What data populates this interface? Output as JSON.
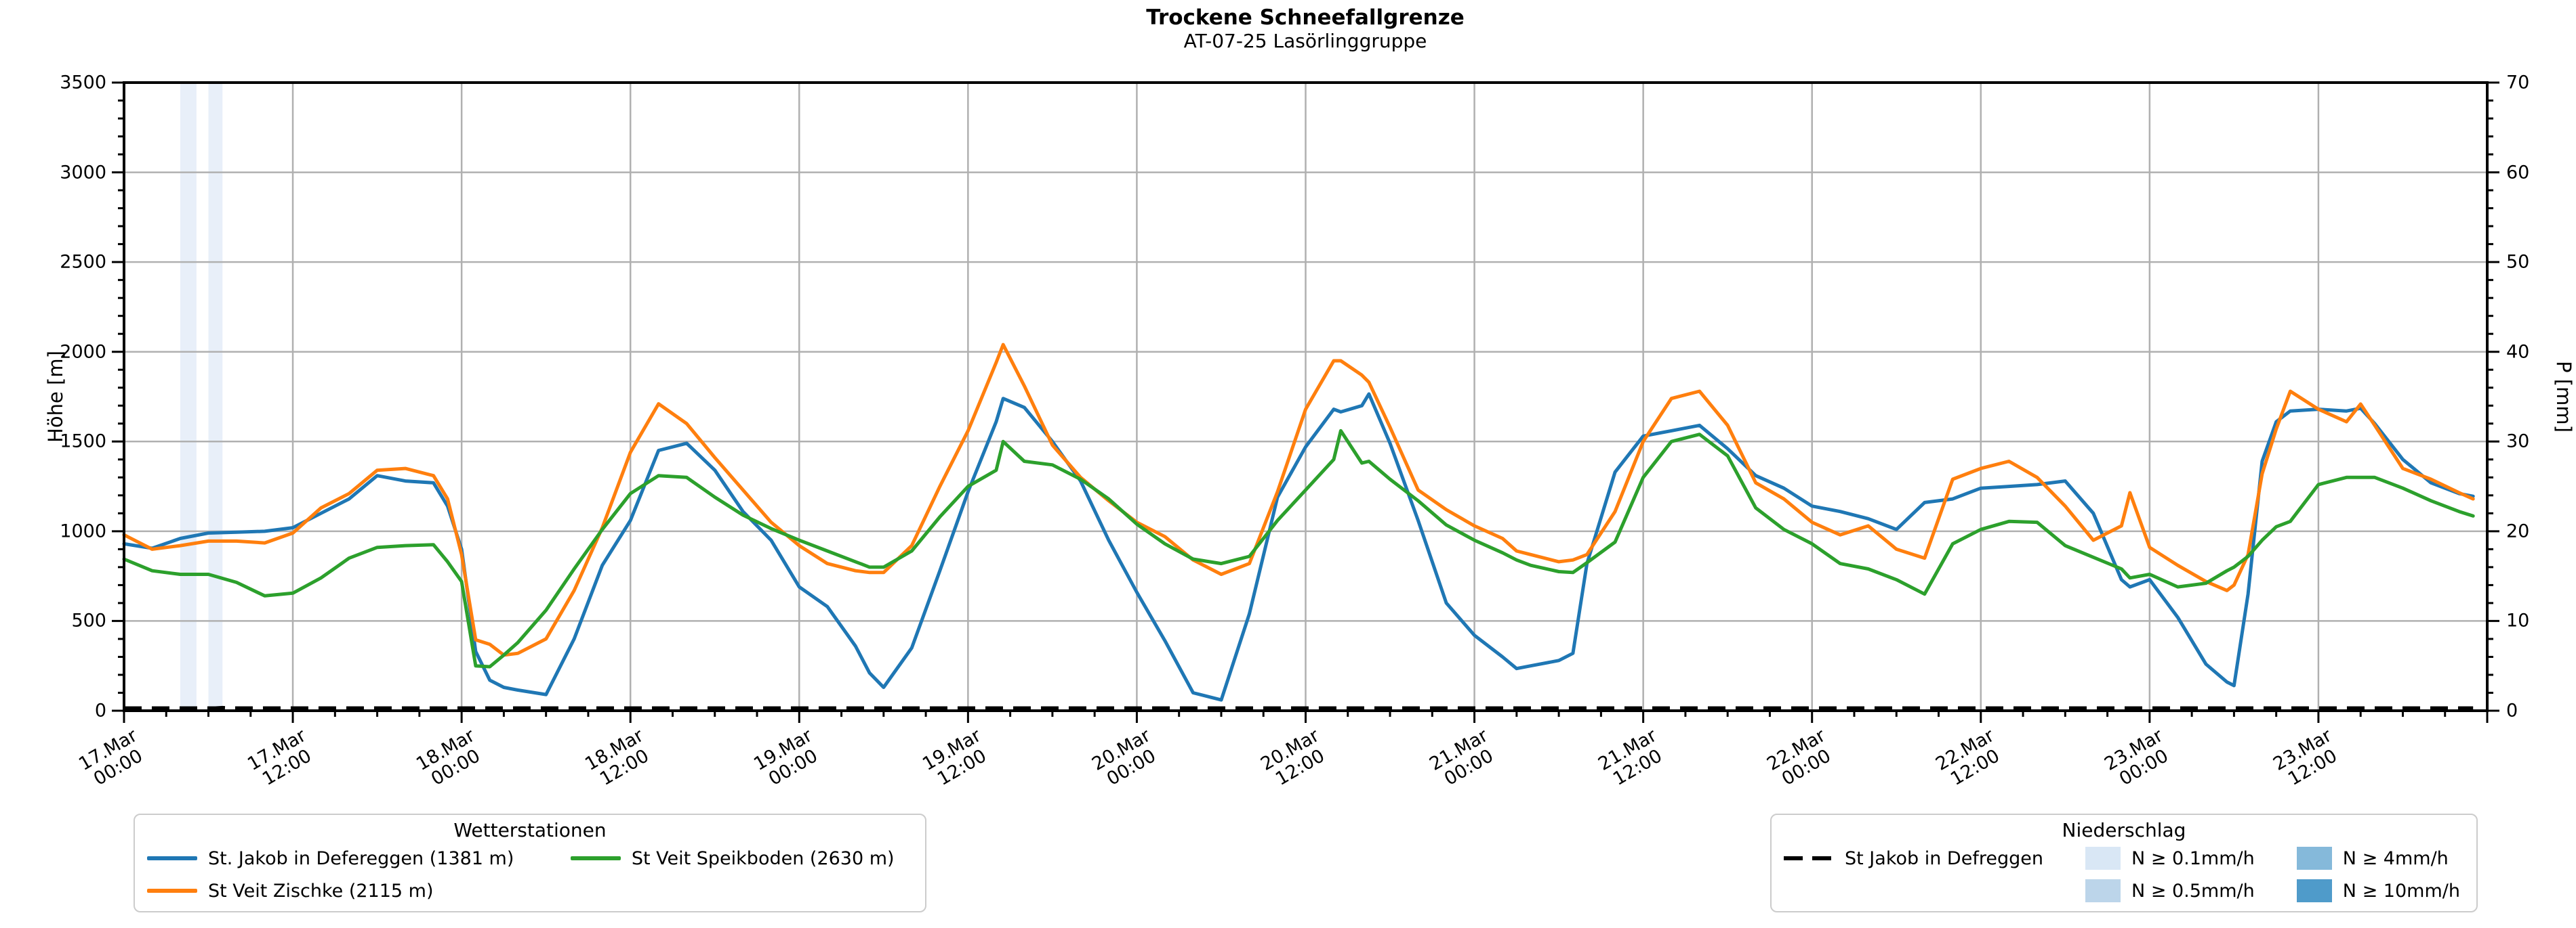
{
  "chart_data": {
    "type": "line",
    "title": "Trockene Schneefallgrenze",
    "subtitle": "AT-07-25 Lasörlinggruppe",
    "ylabel_left": "Höhe [m]",
    "ylabel_right": "P [mm]",
    "ylim_left": [
      0,
      3500
    ],
    "ylim_right": [
      0,
      70
    ],
    "xlim_hours": [
      0,
      168
    ],
    "x_unit": "hours since 17.Mar 00:00",
    "grid": true,
    "y_ticks_left": [
      0,
      500,
      1000,
      1500,
      2000,
      2500,
      3000,
      3500
    ],
    "y_ticks_right": [
      0,
      10,
      20,
      30,
      40,
      50,
      60,
      70
    ],
    "x_ticks": [
      {
        "h": 0,
        "label": "17.Mar\n00:00"
      },
      {
        "h": 12,
        "label": "17.Mar\n12:00"
      },
      {
        "h": 24,
        "label": "18.Mar\n00:00"
      },
      {
        "h": 36,
        "label": "18.Mar\n12:00"
      },
      {
        "h": 48,
        "label": "19.Mar\n00:00"
      },
      {
        "h": 60,
        "label": "19.Mar\n12:00"
      },
      {
        "h": 72,
        "label": "20.Mar\n00:00"
      },
      {
        "h": 84,
        "label": "20.Mar\n12:00"
      },
      {
        "h": 96,
        "label": "21.Mar\n00:00"
      },
      {
        "h": 108,
        "label": "21.Mar\n12:00"
      },
      {
        "h": 120,
        "label": "22.Mar\n00:00"
      },
      {
        "h": 132,
        "label": "22.Mar\n12:00"
      },
      {
        "h": 144,
        "label": "23.Mar\n00:00"
      },
      {
        "h": 156,
        "label": "23.Mar\n12:00"
      }
    ],
    "x": [
      0,
      2,
      4,
      6,
      8,
      10,
      12,
      14,
      16,
      18,
      20,
      22,
      23,
      24,
      25,
      26,
      27,
      28,
      30,
      32,
      34,
      36,
      38,
      40,
      42,
      44,
      46,
      48,
      50,
      52,
      53,
      54,
      56,
      58,
      60,
      62,
      62.5,
      64,
      66,
      68,
      70,
      72,
      74,
      76,
      78,
      80,
      82,
      84,
      86,
      86.5,
      88,
      88.5,
      90,
      92,
      94,
      96,
      98,
      99,
      100,
      102,
      103,
      104,
      106,
      108,
      110,
      112,
      114,
      116,
      118,
      120,
      122,
      124,
      126,
      128,
      130,
      132,
      134,
      136,
      138,
      140,
      142,
      142.6,
      144,
      146,
      148,
      149.5,
      150,
      151,
      152,
      153,
      154,
      156,
      158,
      159,
      160,
      162,
      164,
      166,
      167
    ],
    "series": [
      {
        "name": "St. Jakob in Defereggen (1381 m)",
        "color": "#1f77b4",
        "axis": "left",
        "style": "solid",
        "values": [
          930,
          905,
          960,
          990,
          995,
          1000,
          1020,
          1100,
          1180,
          1310,
          1280,
          1270,
          1140,
          900,
          330,
          170,
          130,
          115,
          90,
          400,
          810,
          1060,
          1450,
          1490,
          1340,
          1110,
          950,
          690,
          580,
          360,
          210,
          130,
          350,
          780,
          1220,
          1610,
          1740,
          1690,
          1500,
          1280,
          950,
          660,
          390,
          100,
          60,
          540,
          1190,
          1470,
          1680,
          1665,
          1700,
          1765,
          1490,
          1060,
          600,
          420,
          300,
          235,
          250,
          280,
          320,
          820,
          1330,
          1530,
          1560,
          1590,
          1460,
          1310,
          1240,
          1140,
          1110,
          1070,
          1010,
          1160,
          1180,
          1240,
          1250,
          1260,
          1280,
          1100,
          730,
          690,
          730,
          520,
          260,
          160,
          140,
          650,
          1390,
          1610,
          1670,
          1680,
          1670,
          1685,
          1600,
          1400,
          1270,
          1210,
          1195
        ]
      },
      {
        "name": "St Veit Zischke (2115 m)",
        "color": "#ff7f0e",
        "axis": "left",
        "style": "solid",
        "values": [
          980,
          900,
          920,
          945,
          945,
          935,
          990,
          1130,
          1210,
          1340,
          1350,
          1310,
          1180,
          870,
          395,
          370,
          310,
          320,
          400,
          670,
          1020,
          1440,
          1710,
          1600,
          1410,
          1230,
          1050,
          920,
          820,
          780,
          770,
          770,
          920,
          1250,
          1560,
          1940,
          2040,
          1810,
          1480,
          1300,
          1170,
          1050,
          970,
          840,
          760,
          820,
          1220,
          1680,
          1950,
          1950,
          1870,
          1830,
          1580,
          1230,
          1120,
          1030,
          960,
          890,
          870,
          830,
          840,
          870,
          1110,
          1500,
          1740,
          1780,
          1590,
          1270,
          1180,
          1050,
          980,
          1030,
          900,
          850,
          1290,
          1350,
          1390,
          1300,
          1140,
          950,
          1030,
          1215,
          910,
          810,
          720,
          670,
          700,
          870,
          1320,
          1570,
          1780,
          1680,
          1610,
          1709,
          1590,
          1350,
          1290,
          1215,
          1180
        ]
      },
      {
        "name": "St Veit Speikboden (2630 m)",
        "color": "#2ca02c",
        "axis": "left",
        "style": "solid",
        "values": [
          845,
          780,
          760,
          760,
          715,
          640,
          655,
          740,
          850,
          910,
          920,
          925,
          830,
          720,
          250,
          245,
          310,
          380,
          560,
          790,
          1010,
          1210,
          1310,
          1300,
          1190,
          1090,
          1015,
          950,
          890,
          830,
          800,
          800,
          890,
          1080,
          1250,
          1340,
          1500,
          1390,
          1370,
          1290,
          1180,
          1040,
          930,
          845,
          820,
          860,
          1060,
          1230,
          1400,
          1560,
          1380,
          1390,
          1290,
          1170,
          1035,
          950,
          880,
          840,
          810,
          775,
          770,
          825,
          940,
          1300,
          1500,
          1540,
          1420,
          1130,
          1010,
          930,
          820,
          790,
          730,
          650,
          930,
          1010,
          1055,
          1050,
          920,
          855,
          790,
          740,
          760,
          690,
          710,
          780,
          800,
          860,
          950,
          1025,
          1055,
          1260,
          1300,
          1300,
          1300,
          1240,
          1170,
          1110,
          1085
        ]
      }
    ],
    "precip_series": {
      "name": "St Jakob in Defreggen",
      "color": "#000000",
      "axis": "right",
      "style": "dashed",
      "x": [
        0,
        4,
        4.5,
        5,
        5.5,
        6,
        6.5,
        7,
        7.5,
        167
      ],
      "values": [
        0,
        0,
        0.15,
        0.25,
        0.3,
        0.2,
        0.3,
        0.35,
        0,
        0
      ]
    },
    "precip_bands": [
      {
        "from_h": 4.0,
        "to_h": 5.15,
        "level": "N ≥ 0.1mm/h",
        "color": "#e8eff9"
      },
      {
        "from_h": 6.0,
        "to_h": 7.0,
        "level": "N ≥ 0.1mm/h",
        "color": "#e8eff9"
      }
    ]
  },
  "legend_stations": {
    "title": "Wetterstationen",
    "items": [
      {
        "label": "St. Jakob in Defereggen (1381 m)",
        "color": "#1f77b4"
      },
      {
        "label": "St Veit Zischke (2115 m)",
        "color": "#ff7f0e"
      },
      {
        "label": "St Veit Speikboden (2630 m)",
        "color": "#2ca02c"
      }
    ]
  },
  "legend_precip": {
    "title": "Niederschlag",
    "line_item": {
      "label": "St Jakob in Defreggen",
      "color": "#000000"
    },
    "patches": [
      {
        "label": "N ≥ 0.1mm/h",
        "color": "#d9e7f5"
      },
      {
        "label": "N ≥ 0.5mm/h",
        "color": "#bcd5ea"
      },
      {
        "label": "N ≥ 4mm/h",
        "color": "#85b9da"
      },
      {
        "label": "N ≥ 10mm/h",
        "color": "#4f9bca"
      }
    ]
  }
}
